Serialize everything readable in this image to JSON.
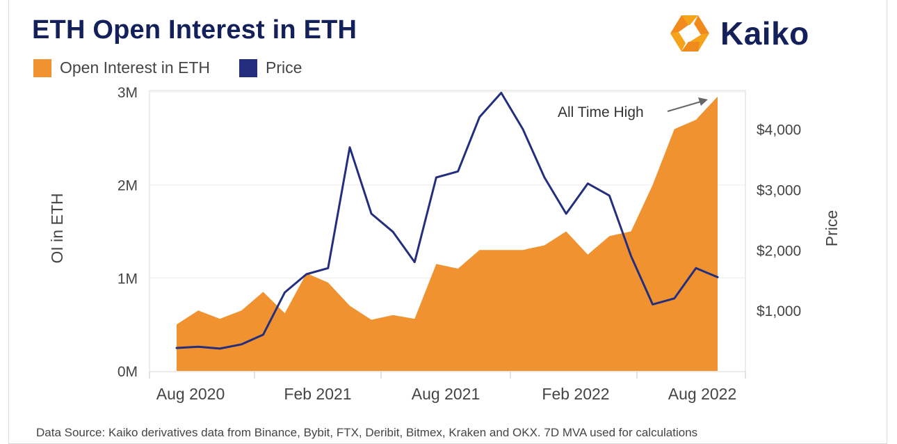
{
  "title": "ETH Open Interest in ETH",
  "logo": {
    "text": "Kaiko"
  },
  "legend": [
    {
      "label": "Open Interest in ETH",
      "color": "#f0922f"
    },
    {
      "label": "Price",
      "color": "#232f7e"
    }
  ],
  "source": "Data Source: Kaiko derivatives data from Binance, Bybit, FTX, Deribit, Bitmex, Kraken and OKX. 7D MVA used for calculations",
  "chart_data": {
    "type": "area",
    "x": [
      "2020-08-01",
      "2020-09-01",
      "2020-10-01",
      "2020-11-01",
      "2020-12-01",
      "2021-01-01",
      "2021-02-01",
      "2021-03-01",
      "2021-04-01",
      "2021-05-01",
      "2021-06-01",
      "2021-07-01",
      "2021-08-01",
      "2021-09-01",
      "2021-10-01",
      "2021-11-01",
      "2021-12-01",
      "2022-01-01",
      "2022-02-01",
      "2022-03-01",
      "2022-04-01",
      "2022-05-01",
      "2022-06-01",
      "2022-07-01",
      "2022-08-01",
      "2022-09-01"
    ],
    "x_tick_labels": [
      "Aug 2020",
      "Feb 2021",
      "Aug 2021",
      "Feb 2022",
      "Aug 2022"
    ],
    "series": [
      {
        "name": "Open Interest in ETH",
        "axis": "left",
        "color": "#f0922f",
        "values": [
          500000,
          650000,
          560000,
          650000,
          850000,
          620000,
          1050000,
          950000,
          700000,
          550000,
          600000,
          560000,
          1150000,
          1100000,
          1300000,
          1300000,
          1300000,
          1350000,
          1500000,
          1250000,
          1450000,
          1500000,
          2000000,
          2600000,
          2700000,
          2950000
        ]
      },
      {
        "name": "Price",
        "axis": "right",
        "color": "#232f7e",
        "values": [
          380,
          400,
          370,
          440,
          600,
          1300,
          1600,
          1700,
          3700,
          2600,
          2300,
          1800,
          3200,
          3300,
          4200,
          4600,
          4000,
          3200,
          2600,
          3100,
          2900,
          1900,
          1100,
          1200,
          1700,
          1550
        ]
      }
    ],
    "y_left": {
      "label": "OI in ETH",
      "ticks": [
        "0M",
        "1M",
        "2M",
        "3M"
      ],
      "range": [
        0,
        3000000
      ]
    },
    "y_right": {
      "label": "Price",
      "ticks": [
        "$1,000",
        "$2,000",
        "$3,000",
        "$4,000"
      ],
      "range": [
        0,
        4800
      ]
    },
    "annotation": {
      "text": "All Time High"
    },
    "grid": true,
    "legend_position": "top-left"
  }
}
